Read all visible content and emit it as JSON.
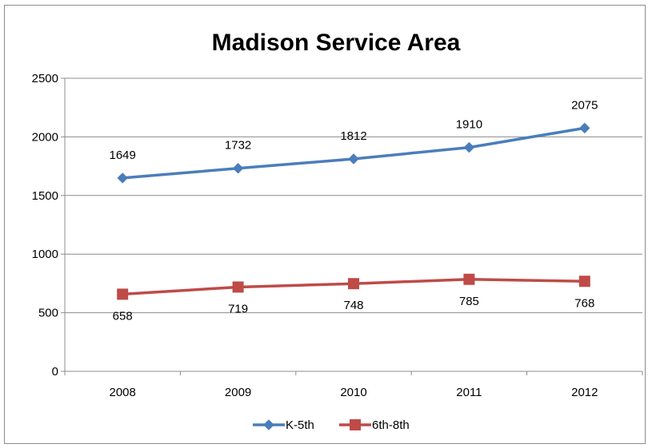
{
  "chart_data": {
    "type": "line",
    "title": "Madison Service Area",
    "xlabel": "",
    "ylabel": "",
    "categories": [
      "2008",
      "2009",
      "2010",
      "2011",
      "2012"
    ],
    "ylim": [
      0,
      2500
    ],
    "yticks": [
      0,
      500,
      1000,
      1500,
      2000,
      2500
    ],
    "grid": true,
    "legend_position": "bottom",
    "series": [
      {
        "name": "K-5th",
        "values": [
          1649,
          1732,
          1812,
          1910,
          2075
        ],
        "color": "#4a7ebb",
        "marker": "diamond",
        "label_position": "above",
        "labels": [
          "1649",
          "1732",
          "1812",
          "1910",
          "2075"
        ]
      },
      {
        "name": "6th-8th",
        "values": [
          658,
          719,
          748,
          785,
          768
        ],
        "color": "#be4b48",
        "marker": "square",
        "label_position": "below",
        "labels": [
          "658",
          "719",
          "748",
          "785",
          "768"
        ]
      }
    ]
  }
}
